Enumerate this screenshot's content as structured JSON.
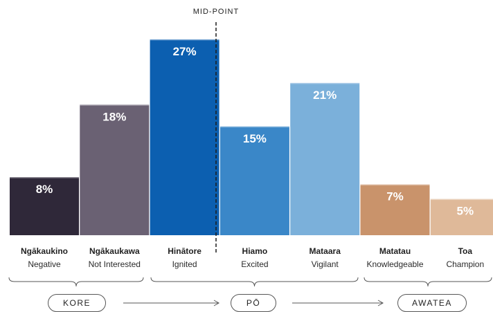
{
  "midpoint_label": "MID-POINT",
  "chart_data": {
    "type": "bar",
    "categories": [
      "Ngākaukino",
      "Ngākaukawa",
      "Hinātore",
      "Hiamo",
      "Mataara",
      "Matatau",
      "Toa"
    ],
    "descriptions": [
      "Negative",
      "Not Interested",
      "Ignited",
      "Excited",
      "Vigilant",
      "Knowledgeable",
      "Champion"
    ],
    "values": [
      8,
      18,
      27,
      15,
      21,
      7,
      5
    ],
    "value_labels": [
      "8%",
      "18%",
      "27%",
      "15%",
      "21%",
      "7%",
      "5%"
    ],
    "colors": [
      "#2f2839",
      "#6a6173",
      "#0c5fb0",
      "#3a87c8",
      "#7bb0da",
      "#c9936b",
      "#dfb999"
    ],
    "ylim": [
      0,
      30
    ],
    "groups": [
      {
        "label": "KORE",
        "categories": [
          "Ngākaukino",
          "Ngākaukawa"
        ]
      },
      {
        "label": "PŌ",
        "categories": [
          "Hinātore",
          "Hiamo",
          "Mataara"
        ]
      },
      {
        "label": "AWATEA",
        "categories": [
          "Matatau",
          "Toa"
        ]
      }
    ]
  }
}
